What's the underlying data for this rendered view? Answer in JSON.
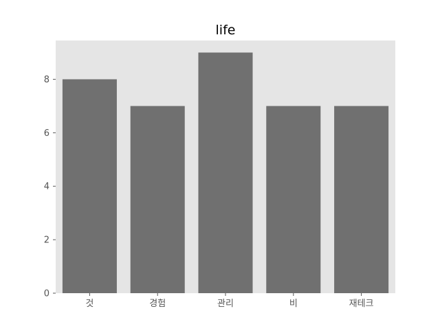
{
  "chart_data": {
    "type": "bar",
    "title": "life",
    "xlabel": "",
    "ylabel": "",
    "categories": [
      "것",
      "경험",
      "관리",
      "비",
      "재테크"
    ],
    "values": [
      8,
      7,
      9,
      7,
      7
    ],
    "ylim": [
      0,
      9.45
    ],
    "yticks": [
      0,
      2,
      4,
      6,
      8
    ],
    "grid": false,
    "colors": {
      "bar": "#707070",
      "plot_background": "#e5e5e5",
      "page_background": "#ffffff",
      "tick": "#555555"
    }
  }
}
